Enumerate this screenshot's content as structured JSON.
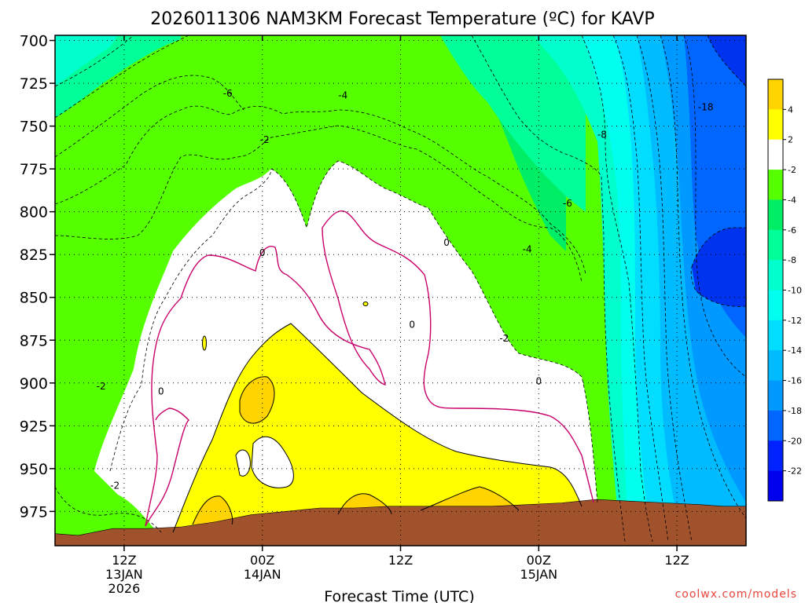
{
  "chart_data": {
    "type": "heatmap",
    "title": "2026011306 NAM3KM Forecast Temperature (ºC) for KAVP",
    "xlabel": "Forecast Time (UTC)",
    "ylabel": "",
    "credit": "coolwx.com/models",
    "y_axis": {
      "unit": "hPa",
      "range": [
        697,
        995
      ],
      "ticks": [
        700,
        725,
        750,
        775,
        800,
        825,
        850,
        875,
        900,
        925,
        950,
        975
      ]
    },
    "x_axis": {
      "unit": "hours after 2026-01-13 06Z",
      "range": [
        0,
        60
      ],
      "ticks": [
        {
          "hour": 6,
          "lines": [
            "12Z",
            "13JAN",
            "2026"
          ]
        },
        {
          "hour": 18,
          "lines": [
            "00Z",
            "14JAN"
          ]
        },
        {
          "hour": 30,
          "lines": [
            "12Z"
          ]
        },
        {
          "hour": 42,
          "lines": [
            "00Z",
            "15JAN"
          ]
        },
        {
          "hour": 54,
          "lines": [
            "12Z"
          ]
        }
      ]
    },
    "grid": true,
    "colorbar": {
      "placement": "right",
      "labels": [
        "4",
        "2",
        "-2",
        "-4",
        "-6",
        "-8",
        "-10",
        "-12",
        "-14",
        "-16",
        "-18",
        "-20",
        "-22"
      ],
      "colors": [
        "#ffd400",
        "#ffff00",
        "#ffffff",
        "#55ff00",
        "#00ee66",
        "#00ff99",
        "#00ffcc",
        "#00ffee",
        "#00ddff",
        "#00bbff",
        "#0099ff",
        "#0066ff",
        "#0022ff",
        "#0000ee"
      ]
    },
    "contour_labels": [
      {
        "text": "-6",
        "hour": 15.0,
        "p": 731
      },
      {
        "text": "-4",
        "hour": 25.0,
        "p": 732
      },
      {
        "text": "-2",
        "hour": 18.2,
        "p": 758
      },
      {
        "text": "-8",
        "hour": 47.5,
        "p": 755
      },
      {
        "text": "-18",
        "hour": 56.5,
        "p": 739
      },
      {
        "text": "-6",
        "hour": 44.5,
        "p": 795
      },
      {
        "text": "0",
        "hour": 18.0,
        "p": 824
      },
      {
        "text": "0",
        "hour": 34.0,
        "p": 818
      },
      {
        "text": "-4",
        "hour": 41.0,
        "p": 822
      },
      {
        "text": "0",
        "hour": 31.0,
        "p": 866
      },
      {
        "text": "-2",
        "hour": 39.0,
        "p": 874
      },
      {
        "text": "0",
        "hour": 42.0,
        "p": 899
      },
      {
        "text": "-2",
        "hour": 4.0,
        "p": 902
      },
      {
        "text": "0",
        "hour": 9.2,
        "p": 905
      },
      {
        "text": "-2",
        "hour": 5.2,
        "p": 960
      }
    ],
    "terrain": {
      "color": "#a0522d",
      "hours": [
        0,
        2,
        5,
        8,
        11,
        14,
        17,
        20,
        23,
        26,
        29,
        32,
        35,
        38,
        41,
        44,
        47,
        50,
        53,
        56,
        58,
        60
      ],
      "surface_p": [
        988,
        989,
        985,
        985,
        984,
        981,
        977,
        975,
        973,
        973,
        972,
        972,
        972,
        972,
        971,
        970,
        968,
        969,
        970,
        971,
        972,
        972
      ]
    }
  }
}
